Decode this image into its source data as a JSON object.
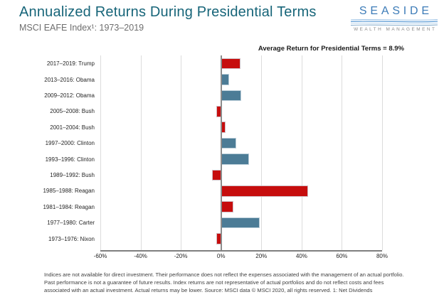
{
  "header": {
    "title": "Annualized Returns During Presidential Terms",
    "subtitle": "MSCI EAFE Index¹: 1973–2019"
  },
  "logo": {
    "wordmark": "SEASIDE",
    "tagline": "WEALTH MANAGEMENT"
  },
  "chart_data": {
    "type": "bar",
    "orientation": "horizontal",
    "title": "Annualized Returns During Presidential Terms",
    "subtitle": "MSCI EAFE Index¹: 1973–2019",
    "annotation": "Average Return for Presidential Terms = 8.9%",
    "average_return_pct": 8.9,
    "categories": [
      "2017–2019: Trump",
      "2013–2016: Obama",
      "2009–2012: Obama",
      "2005–2008: Bush",
      "2001–2004: Bush",
      "1997–2000: Clinton",
      "1993–1996: Clinton",
      "1989–1992: Bush",
      "1985–1988: Reagan",
      "1981–1984: Reagan",
      "1977–1980: Carter",
      "1973–1976: Nixon"
    ],
    "values": [
      9.6,
      4.0,
      10.0,
      -2.5,
      2.4,
      7.4,
      13.9,
      -4.5,
      43.4,
      6.2,
      19.1,
      -2.4
    ],
    "parties": [
      "R",
      "D",
      "D",
      "R",
      "R",
      "D",
      "D",
      "R",
      "R",
      "R",
      "D",
      "R"
    ],
    "party_colors": {
      "R": "#c60d0d",
      "D": "#4c7c96"
    },
    "xlim": [
      -60,
      80
    ],
    "xticks": [
      -60,
      -40,
      -20,
      0,
      20,
      40,
      60,
      80
    ],
    "xtick_labels": [
      "-60%",
      "-40%",
      "-20%",
      "0%",
      "20%",
      "40%",
      "60%",
      "80%"
    ],
    "unit": "percent annualized return",
    "grid": true,
    "value_labels_shown": false,
    "legend_position": "none"
  },
  "footer": {
    "lines": [
      "Indices are not available for direct investment. Their performance does not reflect the expenses associated with the management of an actual portfolio.",
      "Past performance is not a guarantee of future results. Index returns are not representative of actual portfolios and do not reflect costs and fees",
      "associated with an actual investment. Actual returns may be lower. Source: MSCI data © MSCI 2020, all rights reserved.   1: Net Dividends"
    ]
  }
}
